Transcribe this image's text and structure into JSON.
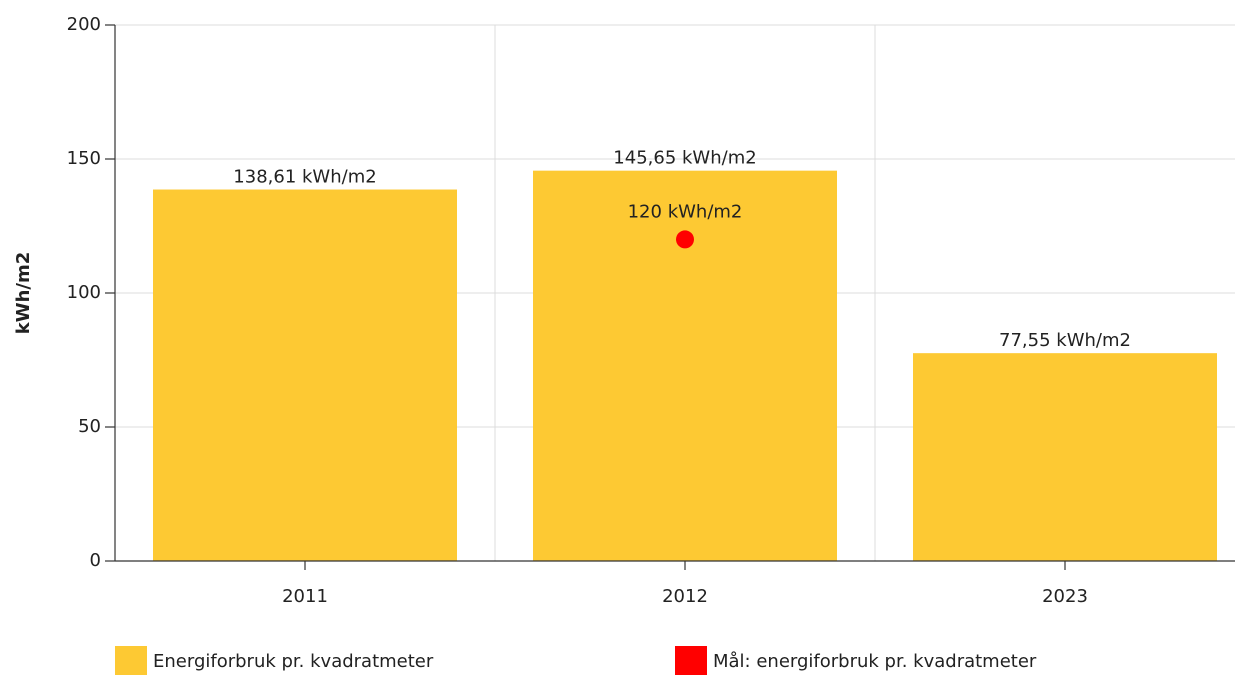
{
  "chart_data": {
    "type": "bar",
    "y_label": "kWh/m2",
    "categories": [
      "2011",
      "2012",
      "2023"
    ],
    "series": [
      {
        "name": "Energiforbruk pr. kvadratmeter",
        "type": "bar",
        "color": "#fdc933",
        "values": [
          138.61,
          145.65,
          77.55
        ],
        "value_labels": [
          "138,61 kWh/m2",
          "145,65 kWh/m2",
          "77,55 kWh/m2"
        ]
      },
      {
        "name": "Mål: energiforbruk pr. kvadratmeter",
        "type": "scatter",
        "color": "#ff0000",
        "values": [
          null,
          120,
          null
        ],
        "value_labels": [
          null,
          "120 kWh/m2",
          null
        ]
      }
    ],
    "ylim": [
      0,
      200
    ],
    "yticks": [
      0,
      50,
      100,
      150,
      200
    ],
    "grid": true
  }
}
